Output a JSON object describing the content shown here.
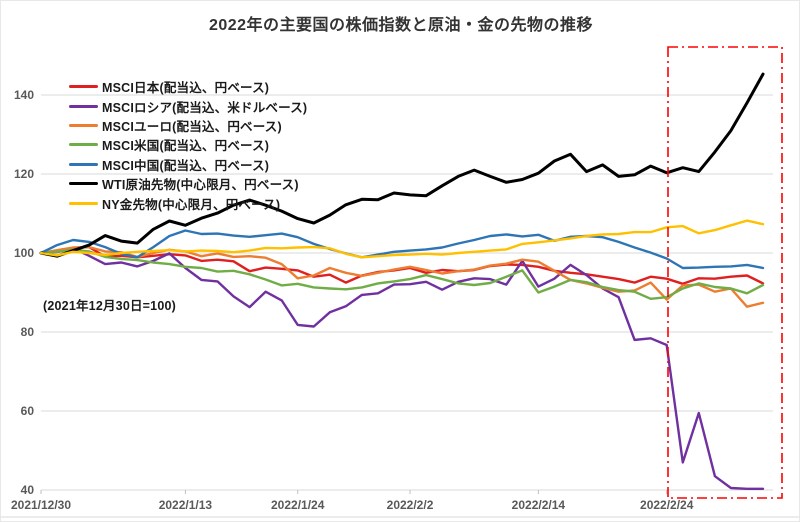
{
  "title": "2022年の主要国の株価指数と原油・金の先物の推移",
  "note": "(2021年12月30日=100)",
  "axis": {
    "text_color": "#595959",
    "gridline_color": "#d9d9d9",
    "x_tick_labels": [
      "2021/12/30",
      "2022/1/13",
      "2022/1/24",
      "2022/2/2",
      "2022/2/14",
      "2022/2/24"
    ]
  },
  "highlight_box": {
    "description": "red dash-dot rectangle highlighting the period from 2022/2/24 (Russian invasion of Ukraine) to the chart end",
    "from_x_label": "2022/2/24",
    "color": "#ff0000"
  },
  "chart_data": {
    "type": "line",
    "title": "2022年の主要国の株価指数と原油・金の先物の推移",
    "subtitle_note": "(2021年12月30日=100)",
    "xlabel": "",
    "ylabel": "",
    "ylim": [
      40,
      152
    ],
    "yticks": [
      40,
      60,
      80,
      100,
      120,
      140
    ],
    "grid": "horizontal",
    "legend_position": "upper-left-inside",
    "n_points": 46,
    "x_dates": [
      "2021/12/30",
      "2022/1/3",
      "2022/1/4",
      "2022/1/5",
      "2022/1/6",
      "2022/1/7",
      "2022/1/10",
      "2022/1/11",
      "2022/1/12",
      "2022/1/13",
      "2022/1/14",
      "2022/1/17",
      "2022/1/18",
      "2022/1/19",
      "2022/1/20",
      "2022/1/21",
      "2022/1/24",
      "2022/1/25",
      "2022/1/26",
      "2022/1/27",
      "2022/1/28",
      "2022/1/31",
      "2022/2/1",
      "2022/2/2",
      "2022/2/3",
      "2022/2/4",
      "2022/2/7",
      "2022/2/8",
      "2022/2/9",
      "2022/2/10",
      "2022/2/11",
      "2022/2/14",
      "2022/2/15",
      "2022/2/16",
      "2022/2/17",
      "2022/2/18",
      "2022/2/21",
      "2022/2/22",
      "2022/2/23",
      "2022/2/24",
      "2022/2/25",
      "2022/2/28",
      "2022/3/1",
      "2022/3/2",
      "2022/3/3",
      "2022/3/4"
    ],
    "x_tick_labels": [
      "2021/12/30",
      "2022/1/13",
      "2022/1/24",
      "2022/2/2",
      "2022/2/14",
      "2022/2/24"
    ],
    "x_tick_indices": [
      0,
      9,
      16,
      23,
      31,
      39
    ],
    "series": [
      {
        "id": "msci_japan",
        "name": "MSCI日本(配当込、円ベース)",
        "color": "#e02020",
        "values": [
          100,
          100.2,
          101.3,
          101.5,
          99.1,
          99.3,
          98.9,
          99.3,
          99.7,
          99.4,
          98,
          98.3,
          97.9,
          95.4,
          96.3,
          96,
          95.6,
          94,
          94.5,
          92.5,
          94.3,
          95.2,
          95.6,
          96.2,
          95,
          95.7,
          95.4,
          95.7,
          96.7,
          97.1,
          97,
          96.5,
          95.5,
          95,
          94.6,
          94,
          93.4,
          92.5,
          94,
          93.5,
          92.2,
          93.6,
          93.5,
          94,
          94.3,
          92.3
        ]
      },
      {
        "id": "msci_russia",
        "name": "MSCIロシア(配当込、米ドルベース)",
        "color": "#7030a0",
        "values": [
          100,
          100.3,
          101.2,
          99.3,
          97.2,
          97.6,
          96.6,
          98,
          99.9,
          96.2,
          93.2,
          92.8,
          89,
          86.3,
          90.2,
          88,
          81.8,
          81.4,
          85,
          86.5,
          89.4,
          89.8,
          92,
          92.1,
          92.7,
          90.7,
          92.7,
          93.6,
          93.4,
          92,
          98,
          91.5,
          93.5,
          97,
          94.4,
          91,
          88.8,
          78,
          78.4,
          76.7,
          47,
          59.5,
          43.5,
          40.5,
          40.3,
          40.3
        ]
      },
      {
        "id": "msci_euro",
        "name": "MSCIユーロ(配当込、円ベース)",
        "color": "#ed7d31",
        "values": [
          100,
          100.7,
          101.4,
          101.5,
          100.4,
          100.2,
          99,
          100,
          100.8,
          100.4,
          99.2,
          99.9,
          99,
          99.2,
          98.8,
          97.2,
          93.6,
          94.3,
          96.2,
          95,
          94.2,
          95,
          95.8,
          96.5,
          95.7,
          94.8,
          95.4,
          95.8,
          96.8,
          97.3,
          98.3,
          97.8,
          95.5,
          93.2,
          92.3,
          91.2,
          90.2,
          90.5,
          92.5,
          88.2,
          91.8,
          92,
          90.2,
          91,
          86.4,
          87.4
        ]
      },
      {
        "id": "msci_us",
        "name": "MSCI米国(配当込、円ベース)",
        "color": "#70ad47",
        "values": [
          100,
          100.3,
          100.8,
          100.4,
          99,
          98.5,
          98.2,
          97.6,
          97.2,
          96.5,
          96.2,
          95.3,
          95.5,
          94.6,
          93.3,
          91.8,
          92.2,
          91.3,
          91,
          90.8,
          91.3,
          92.3,
          92.8,
          93.4,
          94.4,
          93.4,
          92.3,
          91.9,
          92.4,
          94,
          95.6,
          90,
          91.5,
          93.2,
          92.6,
          91.4,
          90.6,
          90.2,
          88.4,
          88.8,
          91,
          92.3,
          91.4,
          91,
          89.8,
          91.9
        ]
      },
      {
        "id": "msci_china",
        "name": "MSCI中国(配当込、円ベース)",
        "color": "#2e75b6",
        "values": [
          100,
          102,
          103.3,
          102.8,
          101.5,
          99.8,
          98.9,
          101.5,
          104.3,
          105.7,
          104.8,
          104.9,
          104.4,
          104.1,
          104.5,
          104.9,
          104,
          102.3,
          101,
          99.9,
          98.9,
          99.6,
          100.3,
          100.6,
          100.9,
          101.4,
          102.4,
          103.3,
          104.3,
          104.7,
          104.2,
          104.6,
          103.1,
          104.1,
          104.3,
          104,
          102.8,
          101.4,
          100.1,
          98.6,
          96.2,
          96.3,
          96.5,
          96.6,
          97,
          96.2
        ]
      },
      {
        "id": "wti_crude",
        "name": "WTI原油先物(中心限月、円ベース)",
        "color": "#000000",
        "values": [
          100,
          99.2,
          100.6,
          102,
          104.4,
          103,
          102.5,
          106,
          108.1,
          107,
          108.8,
          110.1,
          112.1,
          113.4,
          112.1,
          110.6,
          108.7,
          107.6,
          109.6,
          112.2,
          113.6,
          113.5,
          115.2,
          114.7,
          114.5,
          117,
          119.4,
          121,
          119.4,
          117.9,
          118.6,
          120.2,
          123.3,
          125,
          120.6,
          122.3,
          119.4,
          119.8,
          122,
          120.3,
          121.6,
          120.6,
          125.6,
          131,
          138,
          145.3
        ]
      },
      {
        "id": "ny_gold",
        "name": "NY金先物(中心限月、円ベース)",
        "color": "#ffc000",
        "values": [
          100,
          99.4,
          100.3,
          100,
          99.5,
          100,
          100.3,
          100.5,
          100.7,
          100.4,
          100.6,
          100.5,
          100.2,
          100.6,
          101.3,
          101.2,
          101.4,
          101.5,
          101.2,
          99.8,
          98.9,
          99.2,
          99.5,
          99.6,
          99.8,
          99.6,
          100,
          100.3,
          100.6,
          100.9,
          102.3,
          102.7,
          103.2,
          103.7,
          104.3,
          104.7,
          104.8,
          105.3,
          105.3,
          106.5,
          106.8,
          105,
          105.8,
          107,
          108.2,
          107.3
        ]
      }
    ]
  }
}
